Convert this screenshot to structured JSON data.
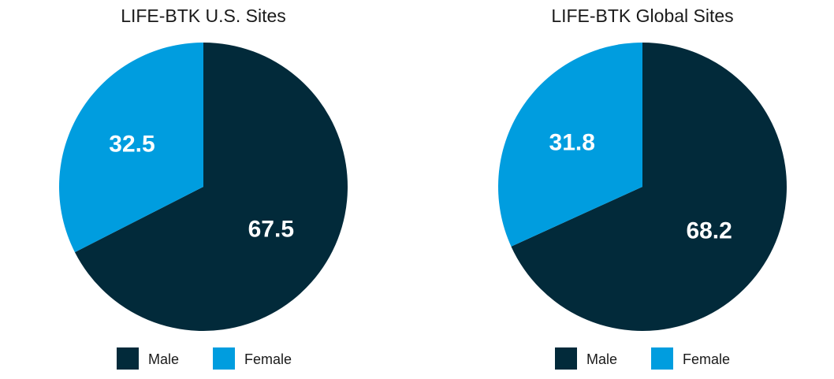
{
  "colors": {
    "male": "#022a3a",
    "female": "#009ddf"
  },
  "chart_data": [
    {
      "type": "pie",
      "title": "LIFE-BTK U.S. Sites",
      "categories": [
        "Male",
        "Female"
      ],
      "values": [
        67.5,
        32.5
      ],
      "legend": [
        "Male",
        "Female"
      ],
      "legend_position": "bottom"
    },
    {
      "type": "pie",
      "title": "LIFE-BTK Global Sites",
      "categories": [
        "Male",
        "Female"
      ],
      "values": [
        68.2,
        31.8
      ],
      "legend": [
        "Male",
        "Female"
      ],
      "legend_position": "bottom"
    }
  ]
}
